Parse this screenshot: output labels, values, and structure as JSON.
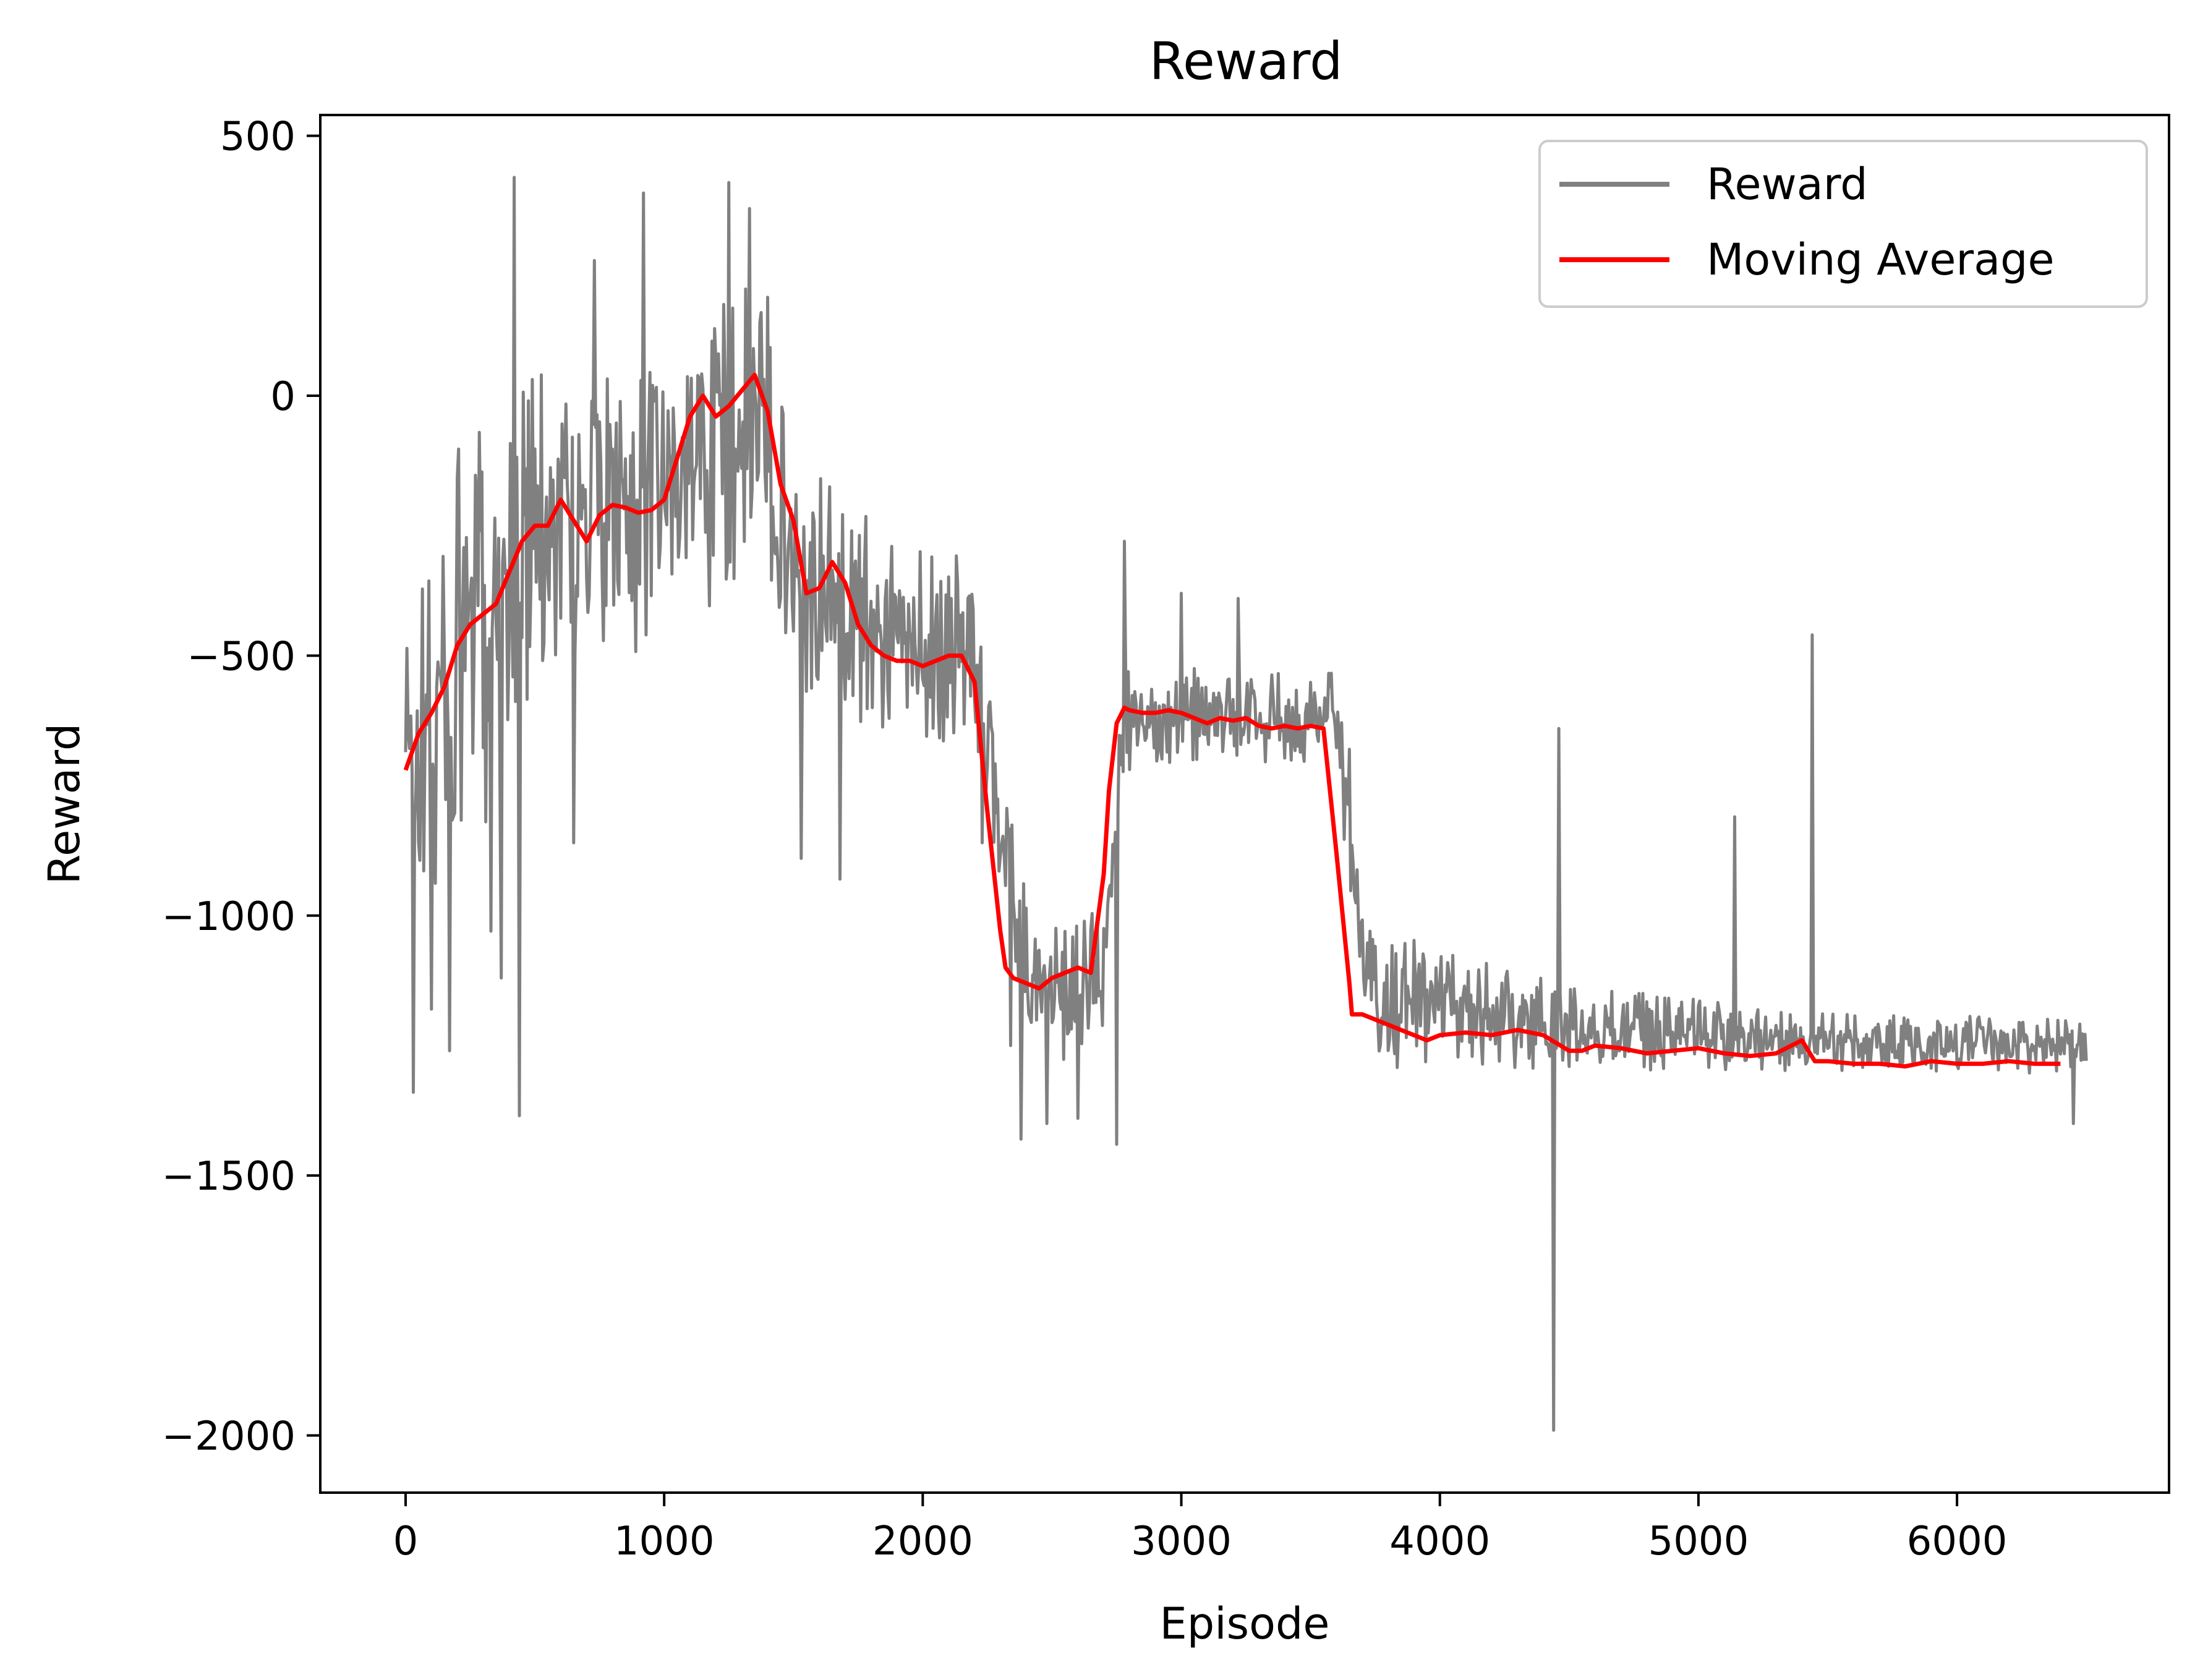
{
  "chart_data": {
    "type": "line",
    "title": "Reward",
    "xlabel": "Episode",
    "ylabel": "Reward",
    "xlim": [
      -330,
      6820
    ],
    "ylim": [
      -2110,
      540
    ],
    "xticks": [
      0,
      1000,
      2000,
      3000,
      4000,
      5000,
      6000
    ],
    "yticks": [
      500,
      0,
      -500,
      -1000,
      -1500,
      -2000
    ],
    "xtick_labels": [
      "0",
      "1000",
      "2000",
      "3000",
      "4000",
      "5000",
      "6000"
    ],
    "ytick_labels": [
      "500",
      "0",
      "−500",
      "−1000",
      "−1500",
      "−2000"
    ],
    "grid": false,
    "legend_position": "upper-right",
    "x_max": 6500,
    "series": [
      {
        "name": "Reward",
        "color": "#808080",
        "style": "noisy raw episode rewards",
        "band_lower": [
          [
            0,
            -1000
          ],
          [
            100,
            -1100
          ],
          [
            200,
            -950
          ],
          [
            300,
            -850
          ],
          [
            400,
            -750
          ],
          [
            500,
            -600
          ],
          [
            600,
            -550
          ],
          [
            700,
            -550
          ],
          [
            800,
            -520
          ],
          [
            900,
            -500
          ],
          [
            1000,
            -480
          ],
          [
            1100,
            -430
          ],
          [
            1200,
            -400
          ],
          [
            1300,
            -380
          ],
          [
            1400,
            -350
          ],
          [
            1450,
            -450
          ],
          [
            1500,
            -550
          ],
          [
            1600,
            -620
          ],
          [
            1700,
            -600
          ],
          [
            1800,
            -650
          ],
          [
            1900,
            -670
          ],
          [
            2000,
            -670
          ],
          [
            2100,
            -680
          ],
          [
            2200,
            -700
          ],
          [
            2300,
            -950
          ],
          [
            2400,
            -1250
          ],
          [
            2500,
            -1280
          ],
          [
            2600,
            -1280
          ],
          [
            2700,
            -1250
          ],
          [
            2780,
            -850
          ],
          [
            2820,
            -700
          ],
          [
            3000,
            -710
          ],
          [
            3300,
            -710
          ],
          [
            3600,
            -710
          ],
          [
            3660,
            -1000
          ],
          [
            3720,
            -1300
          ],
          [
            4000,
            -1300
          ],
          [
            4500,
            -1300
          ],
          [
            5000,
            -1300
          ],
          [
            5500,
            -1305
          ],
          [
            6000,
            -1305
          ],
          [
            6500,
            -1305
          ]
        ],
        "band_upper": [
          [
            0,
            -400
          ],
          [
            100,
            -200
          ],
          [
            200,
            -100
          ],
          [
            300,
            0
          ],
          [
            400,
            30
          ],
          [
            500,
            80
          ],
          [
            600,
            90
          ],
          [
            700,
            60
          ],
          [
            800,
            50
          ],
          [
            900,
            70
          ],
          [
            1000,
            80
          ],
          [
            1100,
            160
          ],
          [
            1200,
            230
          ],
          [
            1300,
            250
          ],
          [
            1400,
            200
          ],
          [
            1450,
            100
          ],
          [
            1500,
            -100
          ],
          [
            1600,
            -150
          ],
          [
            1700,
            -180
          ],
          [
            1800,
            -230
          ],
          [
            1900,
            -270
          ],
          [
            2000,
            -300
          ],
          [
            2100,
            -300
          ],
          [
            2200,
            -320
          ],
          [
            2300,
            -700
          ],
          [
            2400,
            -950
          ],
          [
            2500,
            -1000
          ],
          [
            2600,
            -1000
          ],
          [
            2700,
            -950
          ],
          [
            2780,
            -500
          ],
          [
            2820,
            -530
          ],
          [
            3000,
            -520
          ],
          [
            3300,
            -530
          ],
          [
            3600,
            -520
          ],
          [
            3660,
            -800
          ],
          [
            3720,
            -1000
          ],
          [
            4000,
            -1060
          ],
          [
            4500,
            -1130
          ],
          [
            5000,
            -1160
          ],
          [
            5500,
            -1180
          ],
          [
            6000,
            -1190
          ],
          [
            6500,
            -1200
          ]
        ],
        "spikes": [
          [
            30,
            -1340
          ],
          [
            100,
            -1180
          ],
          [
            170,
            -1260
          ],
          [
            330,
            -1030
          ],
          [
            370,
            -1120
          ],
          [
            420,
            420
          ],
          [
            440,
            -1385
          ],
          [
            650,
            -860
          ],
          [
            730,
            260
          ],
          [
            920,
            390
          ],
          [
            1250,
            410
          ],
          [
            1330,
            360
          ],
          [
            1530,
            -890
          ],
          [
            1680,
            -930
          ],
          [
            2230,
            -860
          ],
          [
            2340,
            -1250
          ],
          [
            2380,
            -1430
          ],
          [
            2480,
            -1400
          ],
          [
            2600,
            -1390
          ],
          [
            2750,
            -1440
          ],
          [
            2780,
            -280
          ],
          [
            3000,
            -380
          ],
          [
            3220,
            -390
          ],
          [
            3650,
            -680
          ],
          [
            4440,
            -1990
          ],
          [
            4460,
            -640
          ],
          [
            5140,
            -810
          ],
          [
            5440,
            -460
          ],
          [
            6450,
            -1400
          ]
        ]
      },
      {
        "name": "Moving Average",
        "color": "#ff0000",
        "x": [
          0,
          50,
          100,
          150,
          200,
          250,
          300,
          350,
          400,
          450,
          500,
          550,
          600,
          650,
          700,
          750,
          800,
          850,
          900,
          950,
          1000,
          1050,
          1100,
          1150,
          1200,
          1250,
          1300,
          1350,
          1400,
          1450,
          1500,
          1550,
          1600,
          1650,
          1700,
          1750,
          1800,
          1850,
          1900,
          1950,
          2000,
          2050,
          2100,
          2150,
          2200,
          2250,
          2300,
          2320,
          2350,
          2400,
          2450,
          2500,
          2550,
          2600,
          2650,
          2700,
          2720,
          2750,
          2780,
          2800,
          2850,
          2900,
          2950,
          3000,
          3050,
          3100,
          3150,
          3200,
          3250,
          3300,
          3350,
          3400,
          3450,
          3500,
          3550,
          3600,
          3650,
          3660,
          3700,
          3750,
          3800,
          3850,
          3900,
          3950,
          4000,
          4100,
          4200,
          4300,
          4400,
          4500,
          4550,
          4600,
          4700,
          4800,
          4900,
          5000,
          5100,
          5200,
          5300,
          5400,
          5450,
          5500,
          5600,
          5700,
          5800,
          5900,
          6000,
          6100,
          6200,
          6300,
          6400
        ],
        "values": [
          -720,
          -650,
          -610,
          -560,
          -480,
          -440,
          -420,
          -400,
          -340,
          -280,
          -250,
          -250,
          -200,
          -240,
          -280,
          -230,
          -210,
          -215,
          -225,
          -220,
          -200,
          -120,
          -40,
          0,
          -40,
          -20,
          10,
          40,
          -30,
          -170,
          -240,
          -380,
          -370,
          -320,
          -360,
          -440,
          -480,
          -500,
          -510,
          -510,
          -520,
          -510,
          -500,
          -500,
          -550,
          -800,
          -1030,
          -1100,
          -1120,
          -1130,
          -1140,
          -1120,
          -1110,
          -1100,
          -1110,
          -920,
          -760,
          -630,
          -600,
          -605,
          -610,
          -610,
          -605,
          -610,
          -620,
          -630,
          -620,
          -625,
          -620,
          -635,
          -640,
          -635,
          -640,
          -635,
          -640,
          -880,
          -1130,
          -1190,
          -1190,
          -1200,
          -1210,
          -1220,
          -1230,
          -1240,
          -1230,
          -1225,
          -1230,
          -1220,
          -1230,
          -1260,
          -1260,
          -1250,
          -1255,
          -1265,
          -1260,
          -1255,
          -1265,
          -1270,
          -1265,
          -1240,
          -1280,
          -1280,
          -1285,
          -1285,
          -1290,
          -1280,
          -1285,
          -1285,
          -1280,
          -1285,
          -1285
        ]
      }
    ]
  }
}
